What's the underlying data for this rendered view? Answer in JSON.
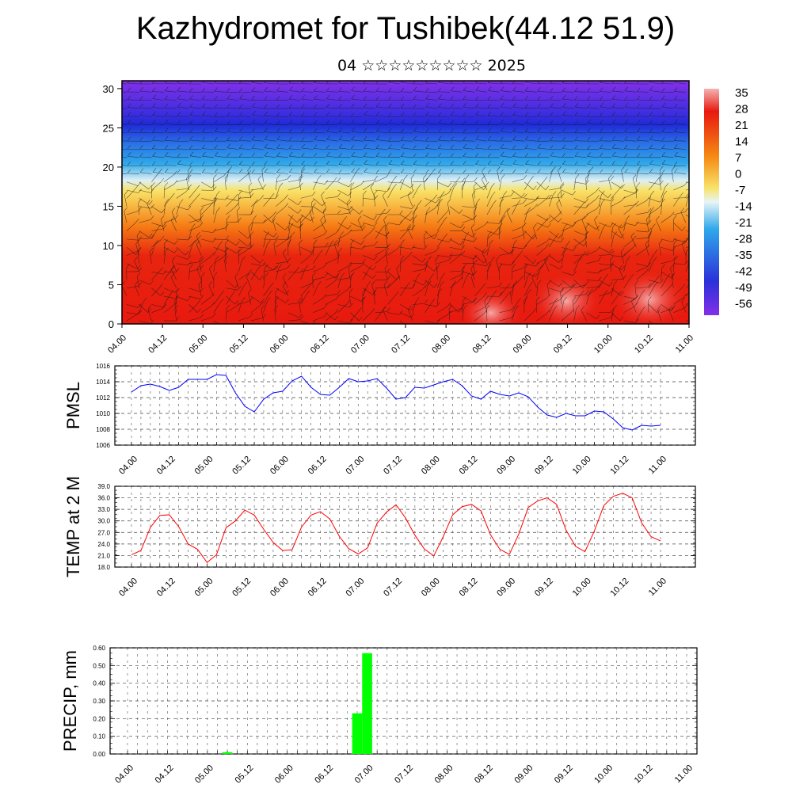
{
  "header": {
    "title": "Kazhydromet for Tushibek(44.12 51.9)",
    "subtitle": "04 ☆☆☆☆☆☆☆☆☆ 2025"
  },
  "time_ticks": [
    "04.00",
    "04.12",
    "05.00",
    "05.12",
    "06.00",
    "06.12",
    "07.00",
    "07.12",
    "08.00",
    "08.12",
    "09.00",
    "09.12",
    "10.00",
    "10.12",
    "11.00"
  ],
  "chart_data": [
    {
      "type": "heatmap",
      "name": "cross-section",
      "y_ticks": [
        "0",
        "5",
        "10",
        "15",
        "20",
        "25",
        "30"
      ],
      "ylim": [
        0,
        31
      ],
      "color_levels": [
        "35",
        "28",
        "21",
        "14",
        "7",
        "0",
        "-7",
        "-14",
        "-21",
        "-28",
        "-35",
        "-42",
        "-49",
        "-56"
      ],
      "colors": {
        "hot": "#f29a9a",
        "red": "#e8190f",
        "orange": "#f58a14",
        "yellow": "#f8e36a",
        "pale": "#cdeaf5",
        "cyan": "#2fa8ea",
        "blue": "#2a31d9",
        "violet": "#8330e8"
      }
    },
    {
      "type": "line",
      "ylabel": "PMSL",
      "color": "#0000ff",
      "ylim": [
        1006,
        1016
      ],
      "y_ticks": [
        "1016",
        "1014",
        "1012",
        "1010",
        "1008",
        "1006"
      ],
      "values": [
        1012.7,
        1013.5,
        1013.7,
        1013.4,
        1012.9,
        1013.3,
        1014.3,
        1014.3,
        1014.3,
        1014.9,
        1014.8,
        1012.6,
        1010.9,
        1010.2,
        1011.8,
        1012.6,
        1012.8,
        1014.1,
        1014.7,
        1013.3,
        1012.4,
        1012.3,
        1013.3,
        1014.4,
        1014.0,
        1014.1,
        1014.4,
        1013.2,
        1011.8,
        1012.0,
        1013.3,
        1013.2,
        1013.6,
        1014.0,
        1014.3,
        1013.5,
        1012.2,
        1011.8,
        1012.8,
        1012.4,
        1012.2,
        1012.6,
        1012.1,
        1010.8,
        1009.8,
        1009.5,
        1010.0,
        1009.7,
        1009.7,
        1010.3,
        1010.2,
        1009.3,
        1008.2,
        1007.9,
        1008.5,
        1008.4,
        1008.5
      ]
    },
    {
      "type": "line",
      "ylabel": "TEMP at 2 M",
      "color": "#ff0000",
      "ylim": [
        18,
        39
      ],
      "y_ticks": [
        "39.0",
        "36.0",
        "33.0",
        "30.0",
        "27.0",
        "24.0",
        "21.0",
        "18.0"
      ],
      "values": [
        21.2,
        22.3,
        28.3,
        31.4,
        31.6,
        28.5,
        24.0,
        22.6,
        19.2,
        21.2,
        28.2,
        30.0,
        32.8,
        31.5,
        27.8,
        24.4,
        22.3,
        22.5,
        28.4,
        31.5,
        32.4,
        30.5,
        26.0,
        22.8,
        21.4,
        23.0,
        29.4,
        32.3,
        34.2,
        30.8,
        26.3,
        22.7,
        20.9,
        25.9,
        31.6,
        33.7,
        34.3,
        32.6,
        26.4,
        22.6,
        21.3,
        26.6,
        33.5,
        35.2,
        36.0,
        34.3,
        27.6,
        23.4,
        22.0,
        27.4,
        34.0,
        36.4,
        37.2,
        36.0,
        29.5,
        25.9,
        24.8
      ]
    },
    {
      "type": "bar",
      "ylabel": "PRECIP, mm",
      "color": "#00ff00",
      "ylim": [
        0,
        0.6
      ],
      "y_ticks": [
        "0.60",
        "0.50",
        "0.40",
        "0.30",
        "0.20",
        "0.10",
        "0.00"
      ],
      "bars": [
        {
          "x": 10,
          "value": 0.01
        },
        {
          "x": 23,
          "value": 0.23
        },
        {
          "x": 24,
          "value": 0.57
        }
      ]
    }
  ]
}
